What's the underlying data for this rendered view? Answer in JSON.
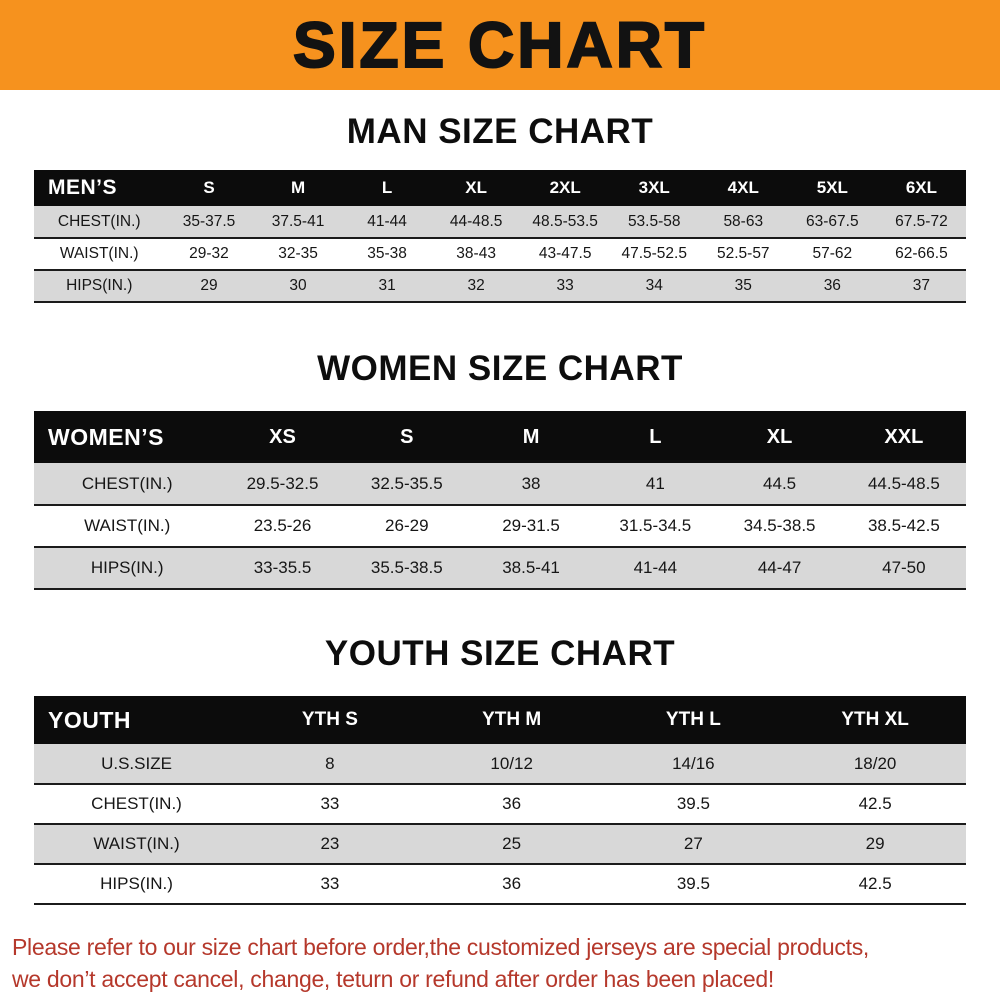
{
  "banner": {
    "title": "SIZE CHART"
  },
  "colors": {
    "banner_bg": "#f6921e",
    "header_bg": "#0c0c0c",
    "row_alt_bg": "#d8d8d8",
    "footer_text": "#b5382b"
  },
  "chart_data": [
    {
      "type": "table",
      "heading": "MAN SIZE CHART",
      "corner_label": "MEN’S",
      "columns": [
        "S",
        "M",
        "L",
        "XL",
        "2XL",
        "3XL",
        "4XL",
        "5XL",
        "6XL"
      ],
      "rows": [
        {
          "label": "CHEST(IN.)",
          "values": [
            "35-37.5",
            "37.5-41",
            "41-44",
            "44-48.5",
            "48.5-53.5",
            "53.5-58",
            "58-63",
            "63-67.5",
            "67.5-72"
          ]
        },
        {
          "label": "WAIST(IN.)",
          "values": [
            "29-32",
            "32-35",
            "35-38",
            "38-43",
            "43-47.5",
            "47.5-52.5",
            "52.5-57",
            "57-62",
            "62-66.5"
          ]
        },
        {
          "label": "HIPS(IN.)",
          "values": [
            "29",
            "30",
            "31",
            "32",
            "33",
            "34",
            "35",
            "36",
            "37"
          ]
        }
      ]
    },
    {
      "type": "table",
      "heading": "WOMEN SIZE CHART",
      "corner_label": "WOMEN’S",
      "columns": [
        "XS",
        "S",
        "M",
        "L",
        "XL",
        "XXL"
      ],
      "rows": [
        {
          "label": "CHEST(IN.)",
          "values": [
            "29.5-32.5",
            "32.5-35.5",
            "38",
            "41",
            "44.5",
            "44.5-48.5"
          ]
        },
        {
          "label": "WAIST(IN.)",
          "values": [
            "23.5-26",
            "26-29",
            "29-31.5",
            "31.5-34.5",
            "34.5-38.5",
            "38.5-42.5"
          ]
        },
        {
          "label": "HIPS(IN.)",
          "values": [
            "33-35.5",
            "35.5-38.5",
            "38.5-41",
            "41-44",
            "44-47",
            "47-50"
          ]
        }
      ]
    },
    {
      "type": "table",
      "heading": "YOUTH SIZE CHART",
      "corner_label": "YOUTH",
      "columns": [
        "YTH S",
        "YTH M",
        "YTH L",
        "YTH XL"
      ],
      "rows": [
        {
          "label": "U.S.SIZE",
          "values": [
            "8",
            "10/12",
            "14/16",
            "18/20"
          ]
        },
        {
          "label": "CHEST(IN.)",
          "values": [
            "33",
            "36",
            "39.5",
            "42.5"
          ]
        },
        {
          "label": "WAIST(IN.)",
          "values": [
            "23",
            "25",
            "27",
            "29"
          ]
        },
        {
          "label": "HIPS(IN.)",
          "values": [
            "33",
            "36",
            "39.5",
            "42.5"
          ]
        }
      ]
    }
  ],
  "footer": {
    "line1": "Please refer to our size chart before order,the customized jerseys are special products,",
    "line2": "we don’t accept cancel, change, teturn or refund after order has been placed!"
  }
}
